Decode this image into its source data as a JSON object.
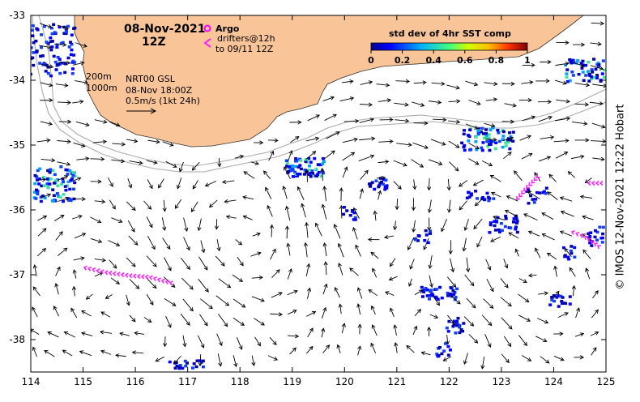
{
  "map": {
    "title_date": "08-Nov-2021",
    "title_time": "12Z",
    "argo_label": "Argo",
    "drifters_label": "drifters@12h",
    "drifters_range": "to 09/11 12Z",
    "contour_200": "200m",
    "contour_1000": "1000m",
    "product": "NRT00 GSL",
    "product_time": "08-Nov 18:00Z",
    "scale_label": "0.5m/s (1kt 24h)",
    "colorbar_title": "std dev of 4hr SST comp",
    "colorbar_ticks": [
      "0",
      "0.2",
      "0.4",
      "0.6",
      "0.8",
      "1"
    ],
    "x_ticks": [
      "114",
      "115",
      "116",
      "117",
      "118",
      "119",
      "120",
      "121",
      "122",
      "123",
      "124",
      "125"
    ],
    "y_ticks": [
      "-33",
      "-34",
      "-35",
      "-36",
      "-37",
      "-38"
    ],
    "copyright": "© IMOS 12-Nov-2021 12:22 Hobart",
    "colors": {
      "land": "#f9c497",
      "argo": "#ff00ff",
      "drifter": "#ff22ff",
      "contour": "#aaaaaa",
      "arrow": "#000000"
    },
    "extent": {
      "lon": [
        114,
        125
      ],
      "lat": [
        -38.5,
        -33
      ]
    }
  }
}
